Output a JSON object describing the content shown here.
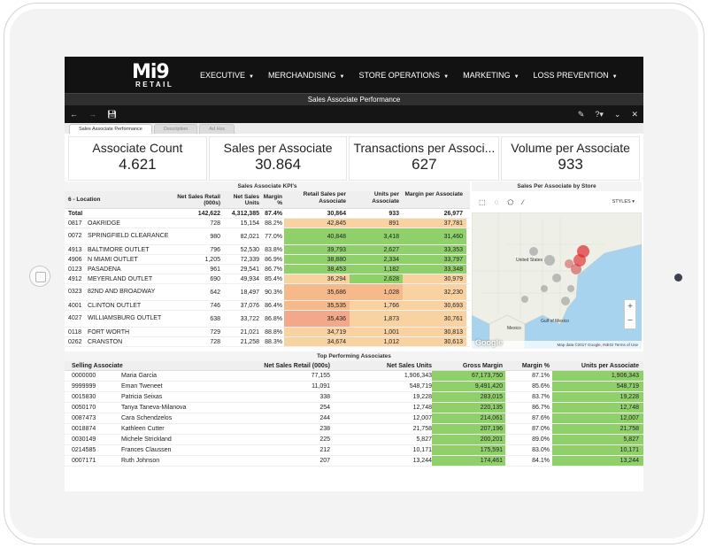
{
  "app": {
    "logo_text": "Mi9",
    "logo_sub": "RETAIL",
    "nav": [
      {
        "label": "EXECUTIVE"
      },
      {
        "label": "MERCHANDISING"
      },
      {
        "label": "STORE OPERATIONS"
      },
      {
        "label": "MARKETING"
      },
      {
        "label": "LOSS PREVENTION"
      }
    ],
    "page_title": "Sales Associate Performance"
  },
  "toolbar": {
    "icons": [
      "back-icon",
      "forward-icon",
      "save-icon",
      "edit-icon",
      "help-icon",
      "collapse-icon",
      "close-icon"
    ]
  },
  "tabs": [
    {
      "label": "Sales Associate Performance",
      "active": true
    },
    {
      "label": "Description",
      "active": false
    },
    {
      "label": "Ad Hoc",
      "active": false
    }
  ],
  "kpis": [
    {
      "label": "Associate Count",
      "value": "4.621"
    },
    {
      "label": "Sales per Associate",
      "value": "30.864"
    },
    {
      "label": "Transactions per Associ...",
      "value": "627"
    },
    {
      "label": "Volume per Associate",
      "value": "933"
    }
  ],
  "kpi_table": {
    "title": "Sales Associate KPI's",
    "headers": {
      "location": "6 - Location",
      "net_sales_retail": "Net Sales Retail (000s)",
      "net_sales_units": "Net Sales Units",
      "margin_pct": "Margin %",
      "retail_sales_per_assoc": "Retail Sales per Associate",
      "units_per_assoc": "Units per Associate",
      "margin_per_assoc": "Margin per Associate"
    },
    "total": {
      "label": "Total",
      "nsr": "142,622",
      "nsu": "4,312,385",
      "mp": "87.4%",
      "rsa": "30,864",
      "upa": "933",
      "mpa": "26,977"
    },
    "rows": [
      {
        "code": "0817",
        "name": "OAKRIDGE",
        "nsr": "728",
        "nsu": "15,154",
        "mp": "88.2%",
        "rsa": "42,845",
        "upa": "891",
        "mpa": "37,781"
      },
      {
        "code": "0072",
        "name": "SPRINGFIELD CLEARANCE",
        "nsr": "980",
        "nsu": "82,021",
        "mp": "77.0%",
        "rsa": "40,848",
        "upa": "3,418",
        "mpa": "31,460"
      },
      {
        "code": "4913",
        "name": "BALTIMORE OUTLET",
        "nsr": "796",
        "nsu": "52,530",
        "mp": "83.8%",
        "rsa": "39,793",
        "upa": "2,627",
        "mpa": "33,353"
      },
      {
        "code": "4906",
        "name": "N MIAMI OUTLET",
        "nsr": "1,205",
        "nsu": "72,339",
        "mp": "86.9%",
        "rsa": "38,880",
        "upa": "2,334",
        "mpa": "33,797"
      },
      {
        "code": "0123",
        "name": "PASADENA",
        "nsr": "961",
        "nsu": "29,541",
        "mp": "86.7%",
        "rsa": "38,453",
        "upa": "1,182",
        "mpa": "33,348"
      },
      {
        "code": "4912",
        "name": "MEYERLAND OUTLET",
        "nsr": "690",
        "nsu": "49,934",
        "mp": "85.4%",
        "rsa": "36,294",
        "upa": "2,628",
        "mpa": "30,979"
      },
      {
        "code": "0323",
        "name": "82ND AND BROADWAY",
        "nsr": "642",
        "nsu": "18,497",
        "mp": "90.3%",
        "rsa": "35,686",
        "upa": "1,028",
        "mpa": "32,230"
      },
      {
        "code": "4001",
        "name": "CLINTON OUTLET",
        "nsr": "746",
        "nsu": "37,076",
        "mp": "86.4%",
        "rsa": "35,535",
        "upa": "1,766",
        "mpa": "30,693"
      },
      {
        "code": "4027",
        "name": "WILLIAMSBURG OUTLET",
        "nsr": "638",
        "nsu": "33,722",
        "mp": "86.8%",
        "rsa": "35,436",
        "upa": "1,873",
        "mpa": "30,761"
      },
      {
        "code": "0118",
        "name": "FORT WORTH",
        "nsr": "729",
        "nsu": "21,021",
        "mp": "88.8%",
        "rsa": "34,719",
        "upa": "1,001",
        "mpa": "30,813"
      },
      {
        "code": "0262",
        "name": "CRANSTON",
        "nsr": "728",
        "nsu": "21,258",
        "mp": "88.3%",
        "rsa": "34,674",
        "upa": "1,012",
        "mpa": "30,613"
      }
    ]
  },
  "map": {
    "title": "Sales Per Associate by Store",
    "styles_label": "STYLES",
    "labels": {
      "us": "United States",
      "mexico": "Mexico",
      "gulf": "Gulf of Mexico"
    },
    "attribution": "Map data ©2017 Google, INEGI   Terms of Use",
    "google": "Google",
    "zoom_in": "+",
    "zoom_out": "−"
  },
  "top_table": {
    "title": "Top Performing Associates",
    "headers": {
      "associate": "Selling Associate",
      "nsr": "Net Sales Retail (000s)",
      "nsu": "Net Sales Units",
      "gm": "Gross Margin",
      "mp": "Margin %",
      "upa": "Units per Associate"
    },
    "rows": [
      {
        "id": "0000000",
        "name": "Maria Garcia",
        "nsr": "77,155",
        "nsu": "1,906,343",
        "gm": "67,173,750",
        "mp": "87.1%",
        "upa": "1,906,343"
      },
      {
        "id": "9999999",
        "name": "Eman Tweneet",
        "nsr": "11,091",
        "nsu": "548,719",
        "gm": "9,491,420",
        "mp": "85.6%",
        "upa": "548,719"
      },
      {
        "id": "0015830",
        "name": "Patricia Seixas",
        "nsr": "338",
        "nsu": "19,228",
        "gm": "283,015",
        "mp": "83.7%",
        "upa": "19,228"
      },
      {
        "id": "0050170",
        "name": "Tanya Taneva-Milanova",
        "nsr": "254",
        "nsu": "12,748",
        "gm": "220,135",
        "mp": "86.7%",
        "upa": "12,748"
      },
      {
        "id": "0087473",
        "name": "Cara Schendzelos",
        "nsr": "244",
        "nsu": "12,007",
        "gm": "214,061",
        "mp": "87.6%",
        "upa": "12,007"
      },
      {
        "id": "0018874",
        "name": "Kathleen Cutter",
        "nsr": "238",
        "nsu": "21,758",
        "gm": "207,196",
        "mp": "87.0%",
        "upa": "21,758"
      },
      {
        "id": "0030149",
        "name": "Michele Strickland",
        "nsr": "225",
        "nsu": "5,827",
        "gm": "200,201",
        "mp": "89.0%",
        "upa": "5,827"
      },
      {
        "id": "0214585",
        "name": "Frances Claussen",
        "nsr": "212",
        "nsu": "10,171",
        "gm": "175,591",
        "mp": "83.0%",
        "upa": "10,171"
      },
      {
        "id": "0007171",
        "name": "Ruth Johnson",
        "nsr": "207",
        "nsu": "13,244",
        "gm": "174,461",
        "mp": "84.1%",
        "upa": "13,244"
      }
    ]
  },
  "colors": {
    "green": "#8fd06a",
    "light_orange": "#f9d2a2",
    "orange": "#f6b98a",
    "salmon": "#f4a88a",
    "brand_red": "#e0262b"
  }
}
